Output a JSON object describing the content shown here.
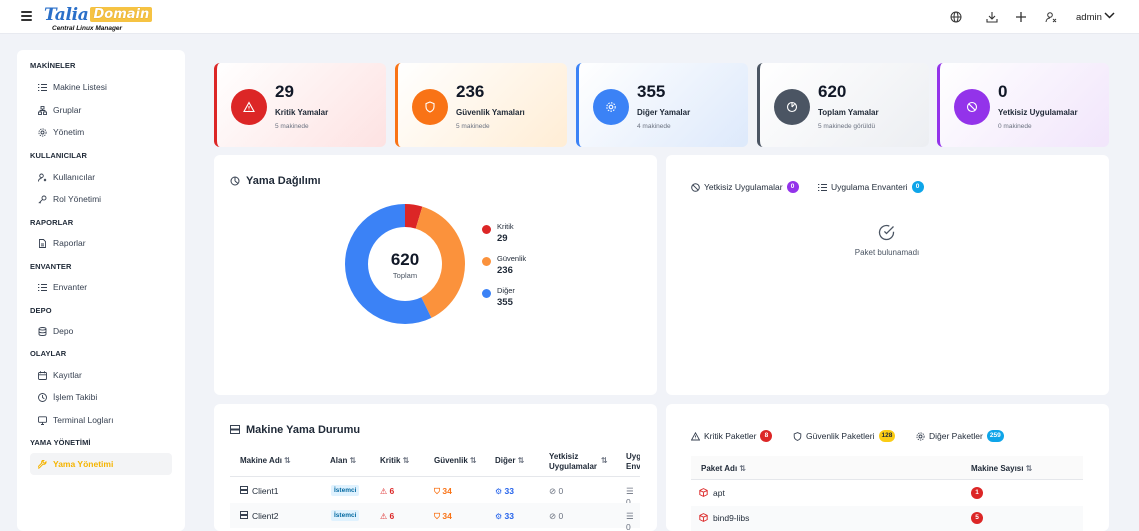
{
  "header": {
    "logo_main": "Talia",
    "logo_badge": "Domain",
    "logo_sub": "Central Linux Manager",
    "user": "admin"
  },
  "sidebar": {
    "sections": [
      {
        "title": "MAKİNELER",
        "items": [
          {
            "label": "Makine Listesi",
            "icon": "list-icon"
          },
          {
            "label": "Gruplar",
            "icon": "sitemap-icon"
          },
          {
            "label": "Yönetim",
            "icon": "gear-icon"
          }
        ]
      },
      {
        "title": "KULLANICILAR",
        "items": [
          {
            "label": "Kullanıcılar",
            "icon": "users-icon"
          },
          {
            "label": "Rol Yönetimi",
            "icon": "key-icon"
          }
        ]
      },
      {
        "title": "RAPORLAR",
        "items": [
          {
            "label": "Raporlar",
            "icon": "file-icon"
          }
        ]
      },
      {
        "title": "ENVANTER",
        "items": [
          {
            "label": "Envanter",
            "icon": "list-icon"
          }
        ]
      },
      {
        "title": "DEPO",
        "items": [
          {
            "label": "Depo",
            "icon": "database-icon"
          }
        ]
      },
      {
        "title": "OLAYLAR",
        "items": [
          {
            "label": "Kayıtlar",
            "icon": "calendar-icon"
          },
          {
            "label": "İşlem Takibi",
            "icon": "clock-icon"
          },
          {
            "label": "Terminal Logları",
            "icon": "monitor-icon"
          }
        ]
      },
      {
        "title": "YAMA YÖNETİMİ",
        "items": [
          {
            "label": "Yama Yönetimi",
            "icon": "wrench-icon"
          }
        ]
      }
    ]
  },
  "stats": [
    {
      "value": "29",
      "label": "Kritik Yamalar",
      "sub": "5 makinede",
      "color": "#dc2626",
      "bg": "#fde2e2",
      "icon": "warning-icon"
    },
    {
      "value": "236",
      "label": "Güvenlik Yamaları",
      "sub": "5 makinede",
      "color": "#f97316",
      "bg": "#ffedd5",
      "icon": "shield-icon"
    },
    {
      "value": "355",
      "label": "Diğer Yamalar",
      "sub": "4 makinede",
      "color": "#3b82f6",
      "bg": "#dde9fb",
      "icon": "gear-icon"
    },
    {
      "value": "620",
      "label": "Toplam Yamalar",
      "sub": "5 makinede görüldü",
      "color": "#4b5563",
      "bg": "#eceef2",
      "icon": "chart-icon"
    },
    {
      "value": "0",
      "label": "Yetkisiz Uygulamalar",
      "sub": "0 makinede",
      "color": "#9333ea",
      "bg": "#f1e5fb",
      "icon": "ban-icon"
    }
  ],
  "distribution": {
    "title": "Yama Dağılımı",
    "center_value": "620",
    "center_label": "Toplam"
  },
  "chart_data": {
    "type": "pie",
    "title": "Yama Dağılımı",
    "categories": [
      "Kritik",
      "Güvenlik",
      "Diğer"
    ],
    "values": [
      29,
      236,
      355
    ],
    "colors": [
      "#dc2626",
      "#fb923c",
      "#3b82f6"
    ],
    "total": 620,
    "legend": "right"
  },
  "unauthorized": {
    "tab1_label": "Yetkisiz Uygulamalar",
    "tab1_count": "0",
    "tab2_label": "Uygulama Envanteri",
    "tab2_count": "0",
    "empty_text": "Paket bulunamadı"
  },
  "machines": {
    "title": "Makine Yama Durumu",
    "columns": [
      "Makine Adı",
      "Alan",
      "Kritik",
      "Güvenlik",
      "Diğer",
      "Yetkisiz Uygulamalar",
      "Uyg Env"
    ],
    "rows": [
      {
        "name": "Client1",
        "area": "İstemci",
        "kritik": "6",
        "guvenlik": "34",
        "diger": "33",
        "yetkisiz": "0",
        "env": "0"
      },
      {
        "name": "Client2",
        "area": "İstemci",
        "kritik": "6",
        "guvenlik": "34",
        "diger": "33",
        "yetkisiz": "0",
        "env": "0"
      }
    ]
  },
  "packages": {
    "tabs": [
      {
        "label": "Kritik Paketler",
        "count": "8",
        "color": "#dc2626"
      },
      {
        "label": "Güvenlik Paketleri",
        "count": "128",
        "color": "#facc15"
      },
      {
        "label": "Diğer Paketler",
        "count": "259",
        "color": "#0ea5e9"
      }
    ],
    "col_name": "Paket Adı",
    "col_count": "Makine Sayısı",
    "rows": [
      {
        "name": "apt",
        "count": "1"
      },
      {
        "name": "bind9-libs",
        "count": "5"
      }
    ]
  }
}
